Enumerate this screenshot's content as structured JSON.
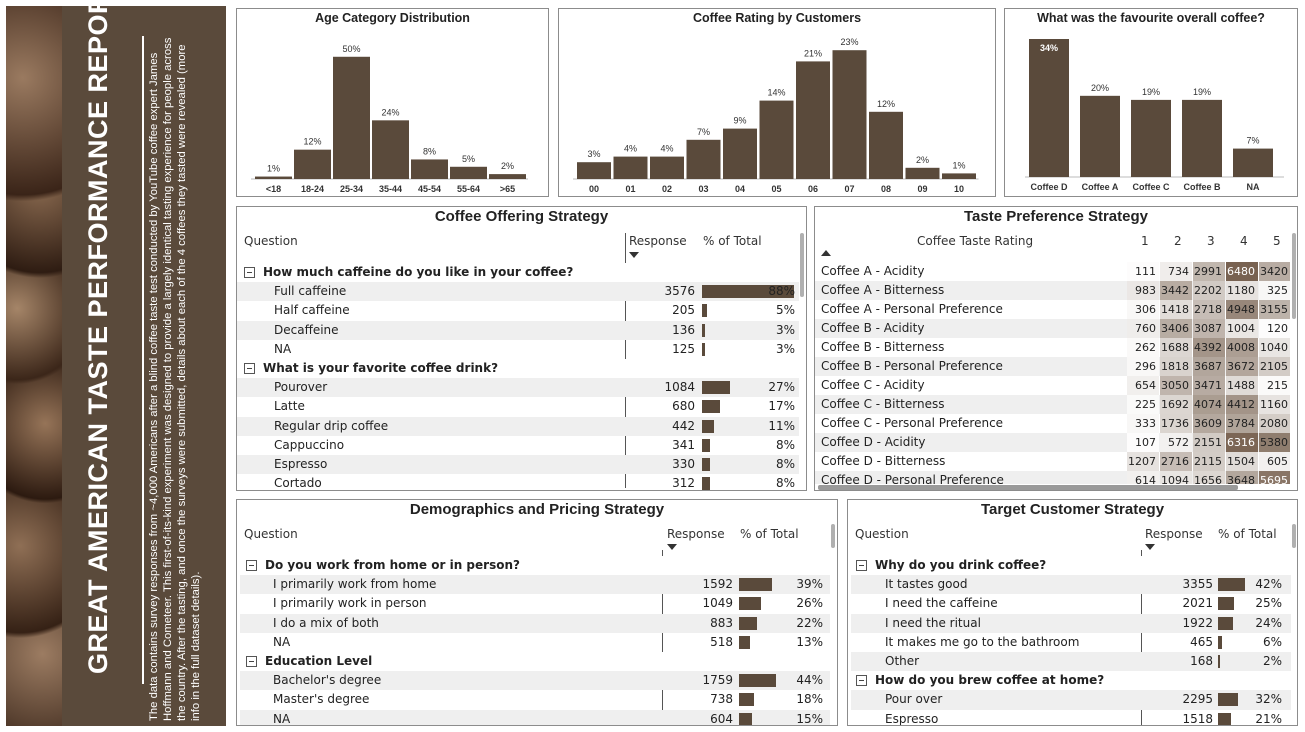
{
  "sidebar": {
    "title": "GREAT AMERICAN TASTE PERFORMANCE REPORT",
    "description": "The data contains survey responses from ~4,000 Americans after a blind coffee taste test conducted by YouTube coffee expert James Hoffmann and Cometeer. This first-of-its-kind experiment was designed to provide a largely identical tasting experience for people across the country. After the tasting, and once the surveys were submitted, details about each of the 4 coffees they tasted were revealed (more info in the full dataset details)."
  },
  "colors": {
    "brand": "#5a4a3b",
    "panel_border": "#8c8c8c",
    "alt_row": "#efefef"
  },
  "chart_data": [
    {
      "type": "bar",
      "title": "Age Category Distribution",
      "categories": [
        "<18",
        "18-24",
        "25-34",
        "35-44",
        "45-54",
        "55-64",
        ">65"
      ],
      "values": [
        1,
        12,
        50,
        24,
        8,
        5,
        2
      ],
      "labels": [
        "1%",
        "12%",
        "50%",
        "24%",
        "8%",
        "5%",
        "2%"
      ],
      "ylim": [
        0,
        54
      ]
    },
    {
      "type": "bar",
      "title": "Coffee Rating by Customers",
      "categories": [
        "00",
        "01",
        "02",
        "03",
        "04",
        "05",
        "06",
        "07",
        "08",
        "09",
        "10"
      ],
      "values": [
        3,
        4,
        4,
        7,
        9,
        14,
        21,
        23,
        12,
        2,
        1
      ],
      "labels": [
        "3%",
        "4%",
        "4%",
        "7%",
        "9%",
        "14%",
        "21%",
        "23%",
        "12%",
        "2%",
        "1%"
      ],
      "ylim": [
        0,
        25
      ]
    },
    {
      "type": "bar",
      "title": "What was the favourite overall coffee?",
      "categories": [
        "Coffee D",
        "Coffee A",
        "Coffee C",
        "Coffee B",
        "NA"
      ],
      "values": [
        34,
        20,
        19,
        19,
        7
      ],
      "labels": [
        "34%",
        "20%",
        "19%",
        "19%",
        "7%"
      ],
      "ylim": [
        0,
        34
      ]
    }
  ],
  "offering": {
    "title": "Coffee Offering Strategy",
    "col_question": "Question",
    "col_response": "Response",
    "col_pct": "% of Total",
    "rows": [
      {
        "type": "group",
        "label": "How much caffeine do you like in your coffee?"
      },
      {
        "type": "item",
        "label": "Full caffeine",
        "response": "3576",
        "pct": "88%",
        "value": 88
      },
      {
        "type": "item",
        "label": "Half caffeine",
        "response": "205",
        "pct": "5%",
        "value": 5
      },
      {
        "type": "item",
        "label": "Decaffeine",
        "response": "136",
        "pct": "3%",
        "value": 3
      },
      {
        "type": "item",
        "label": "NA",
        "response": "125",
        "pct": "3%",
        "value": 3
      },
      {
        "type": "group",
        "label": "What is your favorite coffee drink?"
      },
      {
        "type": "item",
        "label": "Pourover",
        "response": "1084",
        "pct": "27%",
        "value": 27
      },
      {
        "type": "item",
        "label": "Latte",
        "response": "680",
        "pct": "17%",
        "value": 17
      },
      {
        "type": "item",
        "label": "Regular drip coffee",
        "response": "442",
        "pct": "11%",
        "value": 11
      },
      {
        "type": "item",
        "label": "Cappuccino",
        "response": "341",
        "pct": "8%",
        "value": 8
      },
      {
        "type": "item",
        "label": "Espresso",
        "response": "330",
        "pct": "8%",
        "value": 8
      },
      {
        "type": "item",
        "label": "Cortado",
        "response": "312",
        "pct": "8%",
        "value": 8
      }
    ]
  },
  "taste": {
    "title": "Taste Preference Strategy",
    "col_label": "Coffee Taste Rating",
    "ratings": [
      "1",
      "2",
      "3",
      "4",
      "5"
    ],
    "rows": [
      {
        "label": "Coffee A - Acidity",
        "values": [
          111,
          734,
          2991,
          6480,
          3420
        ]
      },
      {
        "label": "Coffee A - Bitterness",
        "values": [
          983,
          3442,
          2202,
          1180,
          325
        ]
      },
      {
        "label": "Coffee A - Personal Preference",
        "values": [
          306,
          1418,
          2718,
          4948,
          3155
        ]
      },
      {
        "label": "Coffee B - Acidity",
        "values": [
          760,
          3406,
          3087,
          1004,
          120
        ]
      },
      {
        "label": "Coffee B - Bitterness",
        "values": [
          262,
          1688,
          4392,
          4008,
          1040
        ]
      },
      {
        "label": "Coffee B - Personal Preference",
        "values": [
          296,
          1818,
          3687,
          3672,
          2105
        ]
      },
      {
        "label": "Coffee C - Acidity",
        "values": [
          654,
          3050,
          3471,
          1488,
          215
        ]
      },
      {
        "label": "Coffee C - Bitterness",
        "values": [
          225,
          1692,
          4074,
          4412,
          1160
        ]
      },
      {
        "label": "Coffee C - Personal Preference",
        "values": [
          333,
          1736,
          3609,
          3784,
          2080
        ]
      },
      {
        "label": "Coffee D - Acidity",
        "values": [
          107,
          572,
          2151,
          6316,
          5380
        ]
      },
      {
        "label": "Coffee D - Bitterness",
        "values": [
          1207,
          2716,
          2115,
          1504,
          605
        ]
      },
      {
        "label": "Coffee D - Personal Preference",
        "values": [
          614,
          1094,
          1656,
          3648,
          5695
        ]
      }
    ]
  },
  "demographics": {
    "title": "Demographics and Pricing Strategy",
    "col_question": "Question",
    "col_response": "Response",
    "col_pct": "% of Total",
    "rows": [
      {
        "type": "group",
        "label": "Do you work from home or in person?"
      },
      {
        "type": "item",
        "label": "I primarily work from home",
        "response": "1592",
        "pct": "39%",
        "value": 39
      },
      {
        "type": "item",
        "label": "I primarily work in person",
        "response": "1049",
        "pct": "26%",
        "value": 26
      },
      {
        "type": "item",
        "label": "I do a mix of both",
        "response": "883",
        "pct": "22%",
        "value": 22
      },
      {
        "type": "item",
        "label": "NA",
        "response": "518",
        "pct": "13%",
        "value": 13
      },
      {
        "type": "group",
        "label": "Education Level"
      },
      {
        "type": "item",
        "label": "Bachelor's degree",
        "response": "1759",
        "pct": "44%",
        "value": 44
      },
      {
        "type": "item",
        "label": "Master's degree",
        "response": "738",
        "pct": "18%",
        "value": 18
      },
      {
        "type": "item",
        "label": "NA",
        "response": "604",
        "pct": "15%",
        "value": 15
      }
    ]
  },
  "target": {
    "title": "Target Customer Strategy",
    "col_question": "Question",
    "col_response": "Response",
    "col_pct": "% of Total",
    "rows": [
      {
        "type": "group",
        "label": "Why do you drink coffee?"
      },
      {
        "type": "item",
        "label": "It tastes good",
        "response": "3355",
        "pct": "42%",
        "value": 42
      },
      {
        "type": "item",
        "label": "I need the caffeine",
        "response": "2021",
        "pct": "25%",
        "value": 25
      },
      {
        "type": "item",
        "label": "I need the ritual",
        "response": "1922",
        "pct": "24%",
        "value": 24
      },
      {
        "type": "item",
        "label": "It makes me go to the bathroom",
        "response": "465",
        "pct": "6%",
        "value": 6
      },
      {
        "type": "item",
        "label": "Other",
        "response": "168",
        "pct": "2%",
        "value": 2
      },
      {
        "type": "group",
        "label": "How do you brew coffee at home?"
      },
      {
        "type": "item",
        "label": "Pour over",
        "response": "2295",
        "pct": "32%",
        "value": 32
      },
      {
        "type": "item",
        "label": "Espresso",
        "response": "1518",
        "pct": "21%",
        "value": 21
      }
    ]
  }
}
